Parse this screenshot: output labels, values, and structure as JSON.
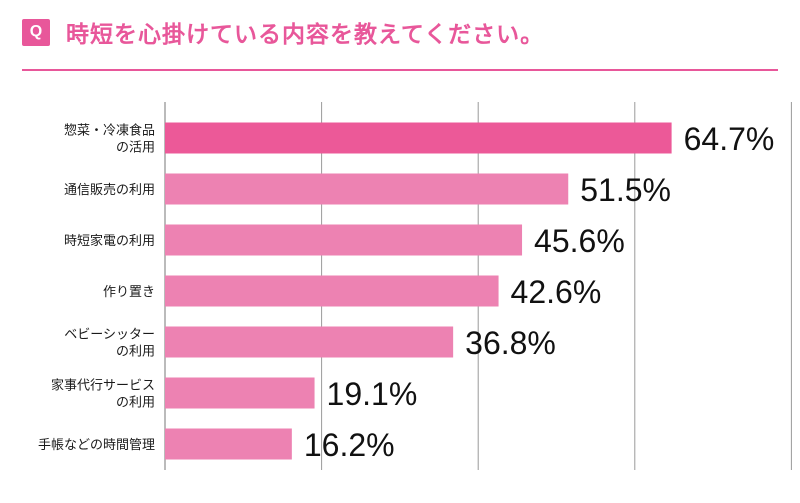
{
  "header": {
    "badge": "Q",
    "title": "時短を心掛けている内容を教えてください。"
  },
  "colors": {
    "accent": "#e8579a",
    "bar_highlight": "#ec5998",
    "bar": "#ed82b2",
    "grid": "#9a9a9a"
  },
  "chart_data": {
    "type": "bar",
    "orientation": "horizontal",
    "categories": [
      [
        "惣菜・冷凍食品",
        "の活用"
      ],
      [
        "通信販売の利用"
      ],
      [
        "時短家電の利用"
      ],
      [
        "作り置き"
      ],
      [
        "ベビーシッター",
        "の利用"
      ],
      [
        "家事代行サービス",
        "の利用"
      ],
      [
        "手帳などの時間管理"
      ]
    ],
    "values": [
      64.7,
      51.5,
      45.6,
      42.6,
      36.8,
      19.1,
      16.2
    ],
    "value_labels": [
      "64.7%",
      "51.5%",
      "45.6%",
      "42.6%",
      "36.8%",
      "19.1%",
      "16.2%"
    ],
    "xlim": [
      0,
      80
    ],
    "grid": true,
    "title": "",
    "xlabel": "",
    "ylabel": ""
  }
}
